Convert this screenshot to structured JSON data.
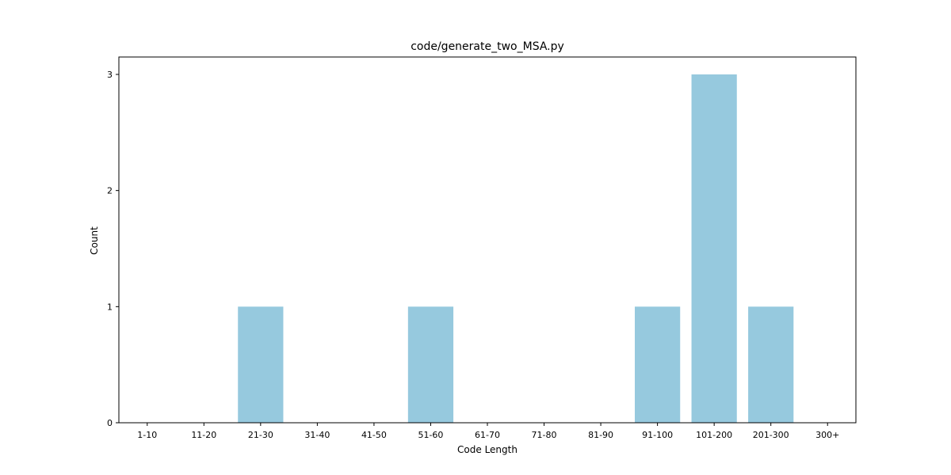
{
  "chart_data": {
    "type": "bar",
    "title": "code/generate_two_MSA.py",
    "xlabel": "Code Length",
    "ylabel": "Count",
    "categories": [
      "1-10",
      "11-20",
      "21-30",
      "31-40",
      "41-50",
      "51-60",
      "61-70",
      "71-80",
      "81-90",
      "91-100",
      "101-200",
      "201-300",
      "300+"
    ],
    "values": [
      0,
      0,
      1,
      0,
      0,
      1,
      0,
      0,
      0,
      1,
      3,
      1,
      0
    ],
    "yticks": [
      0,
      1,
      2,
      3
    ],
    "ylim": [
      0,
      3.15
    ],
    "grid": false,
    "legend": "none",
    "bar_color": "#96c9de"
  }
}
